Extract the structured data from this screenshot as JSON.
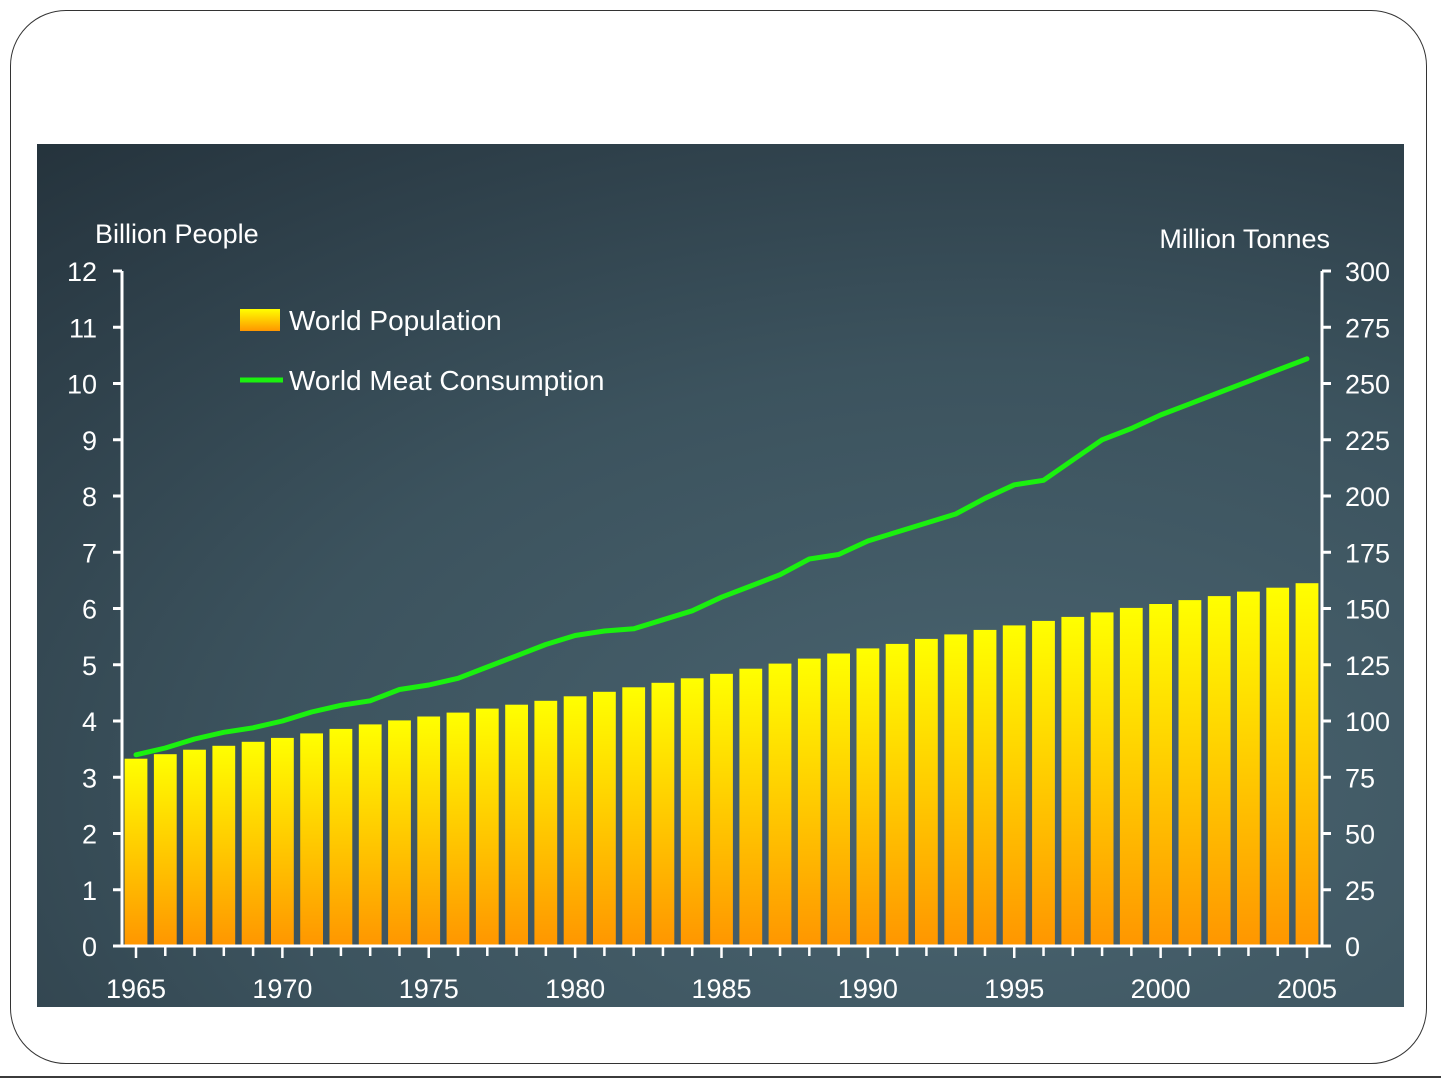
{
  "colors": {
    "bar_top": "#ffff00",
    "bar_bottom": "#ff9600",
    "line": "#1bf00f",
    "axis": "#ffffff",
    "text": "#ffffff"
  },
  "chart_data": {
    "type": "bar",
    "title": "",
    "xlabel": "",
    "y_left_label": "Billion People",
    "y_right_label": "Million Tonnes",
    "categories": [
      1965,
      1966,
      1967,
      1968,
      1969,
      1970,
      1971,
      1972,
      1973,
      1974,
      1975,
      1976,
      1977,
      1978,
      1979,
      1980,
      1981,
      1982,
      1983,
      1984,
      1985,
      1986,
      1987,
      1988,
      1989,
      1990,
      1991,
      1992,
      1993,
      1994,
      1995,
      1996,
      1997,
      1998,
      1999,
      2000,
      2001,
      2002,
      2003,
      2004,
      2005
    ],
    "x_tick_labels": [
      "1965",
      "1970",
      "1975",
      "1980",
      "1985",
      "1990",
      "1995",
      "2000",
      "2005"
    ],
    "y_left_ticks": [
      "0",
      "1",
      "2",
      "3",
      "4",
      "5",
      "6",
      "7",
      "8",
      "9",
      "10",
      "11",
      "12"
    ],
    "y_right_ticks": [
      "0",
      "25",
      "50",
      "75",
      "100",
      "125",
      "150",
      "175",
      "200",
      "225",
      "250",
      "275",
      "300"
    ],
    "ylim_left": [
      0,
      12
    ],
    "ylim_right": [
      0,
      300
    ],
    "legend_position": "top-left",
    "grid": false,
    "series": [
      {
        "name": "World Population",
        "type": "bar",
        "axis": "left",
        "values": [
          3.33,
          3.41,
          3.49,
          3.56,
          3.63,
          3.7,
          3.78,
          3.86,
          3.94,
          4.01,
          4.08,
          4.15,
          4.22,
          4.29,
          4.36,
          4.44,
          4.52,
          4.6,
          4.68,
          4.76,
          4.84,
          4.93,
          5.02,
          5.11,
          5.2,
          5.29,
          5.37,
          5.46,
          5.54,
          5.62,
          5.7,
          5.78,
          5.85,
          5.93,
          6.01,
          6.08,
          6.15,
          6.22,
          6.3,
          6.37,
          6.45
        ]
      },
      {
        "name": "World Meat Consumption",
        "type": "line",
        "axis": "right",
        "values": [
          85,
          88,
          92,
          95,
          97,
          100,
          104,
          107,
          109,
          114,
          116,
          119,
          124,
          129,
          134,
          138,
          140,
          141,
          145,
          149,
          155,
          160,
          165,
          172,
          174,
          180,
          184,
          188,
          192,
          199,
          205,
          207,
          216,
          225,
          230,
          236,
          241,
          246,
          251,
          256,
          261
        ]
      }
    ]
  }
}
